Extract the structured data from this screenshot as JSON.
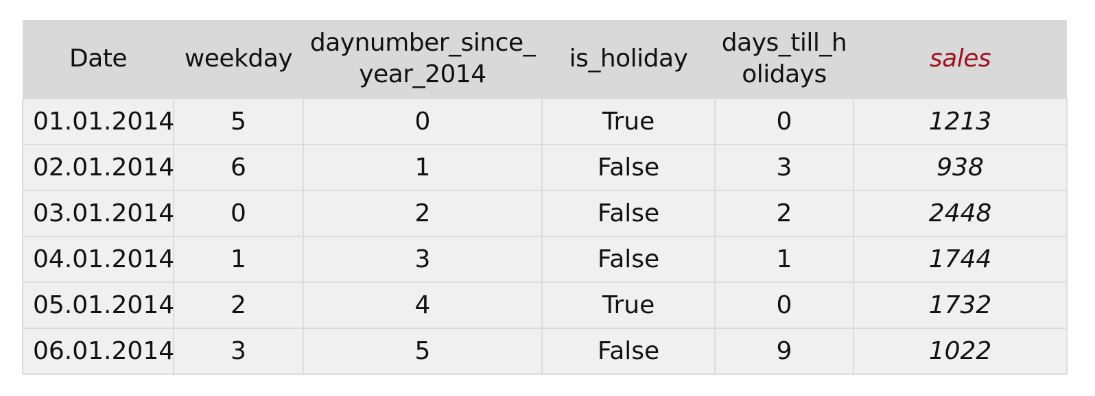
{
  "table": {
    "headers": {
      "date": "Date",
      "weekday": "weekday",
      "daynumber_line1": "daynumber_since_",
      "daynumber_line2": "year_2014",
      "is_holiday": "is_holiday",
      "days_till_line1": "days_till_h",
      "days_till_line2": "olidays",
      "sales": "sales"
    },
    "sales_header_color": "#a0121f",
    "rows": [
      {
        "date": "01.01.2014",
        "weekday": "5",
        "daynumber": "0",
        "is_holiday": "True",
        "days_till_holidays": "0",
        "sales": "1213"
      },
      {
        "date": "02.01.2014",
        "weekday": "6",
        "daynumber": "1",
        "is_holiday": "False",
        "days_till_holidays": "3",
        "sales": "938"
      },
      {
        "date": "03.01.2014",
        "weekday": "0",
        "daynumber": "2",
        "is_holiday": "False",
        "days_till_holidays": "2",
        "sales": "2448"
      },
      {
        "date": "04.01.2014",
        "weekday": "1",
        "daynumber": "3",
        "is_holiday": "False",
        "days_till_holidays": "1",
        "sales": "1744"
      },
      {
        "date": "05.01.2014",
        "weekday": "2",
        "daynumber": "4",
        "is_holiday": "True",
        "days_till_holidays": "0",
        "sales": "1732"
      },
      {
        "date": "06.01.2014",
        "weekday": "3",
        "daynumber": "5",
        "is_holiday": "False",
        "days_till_holidays": "9",
        "sales": "1022"
      }
    ]
  }
}
